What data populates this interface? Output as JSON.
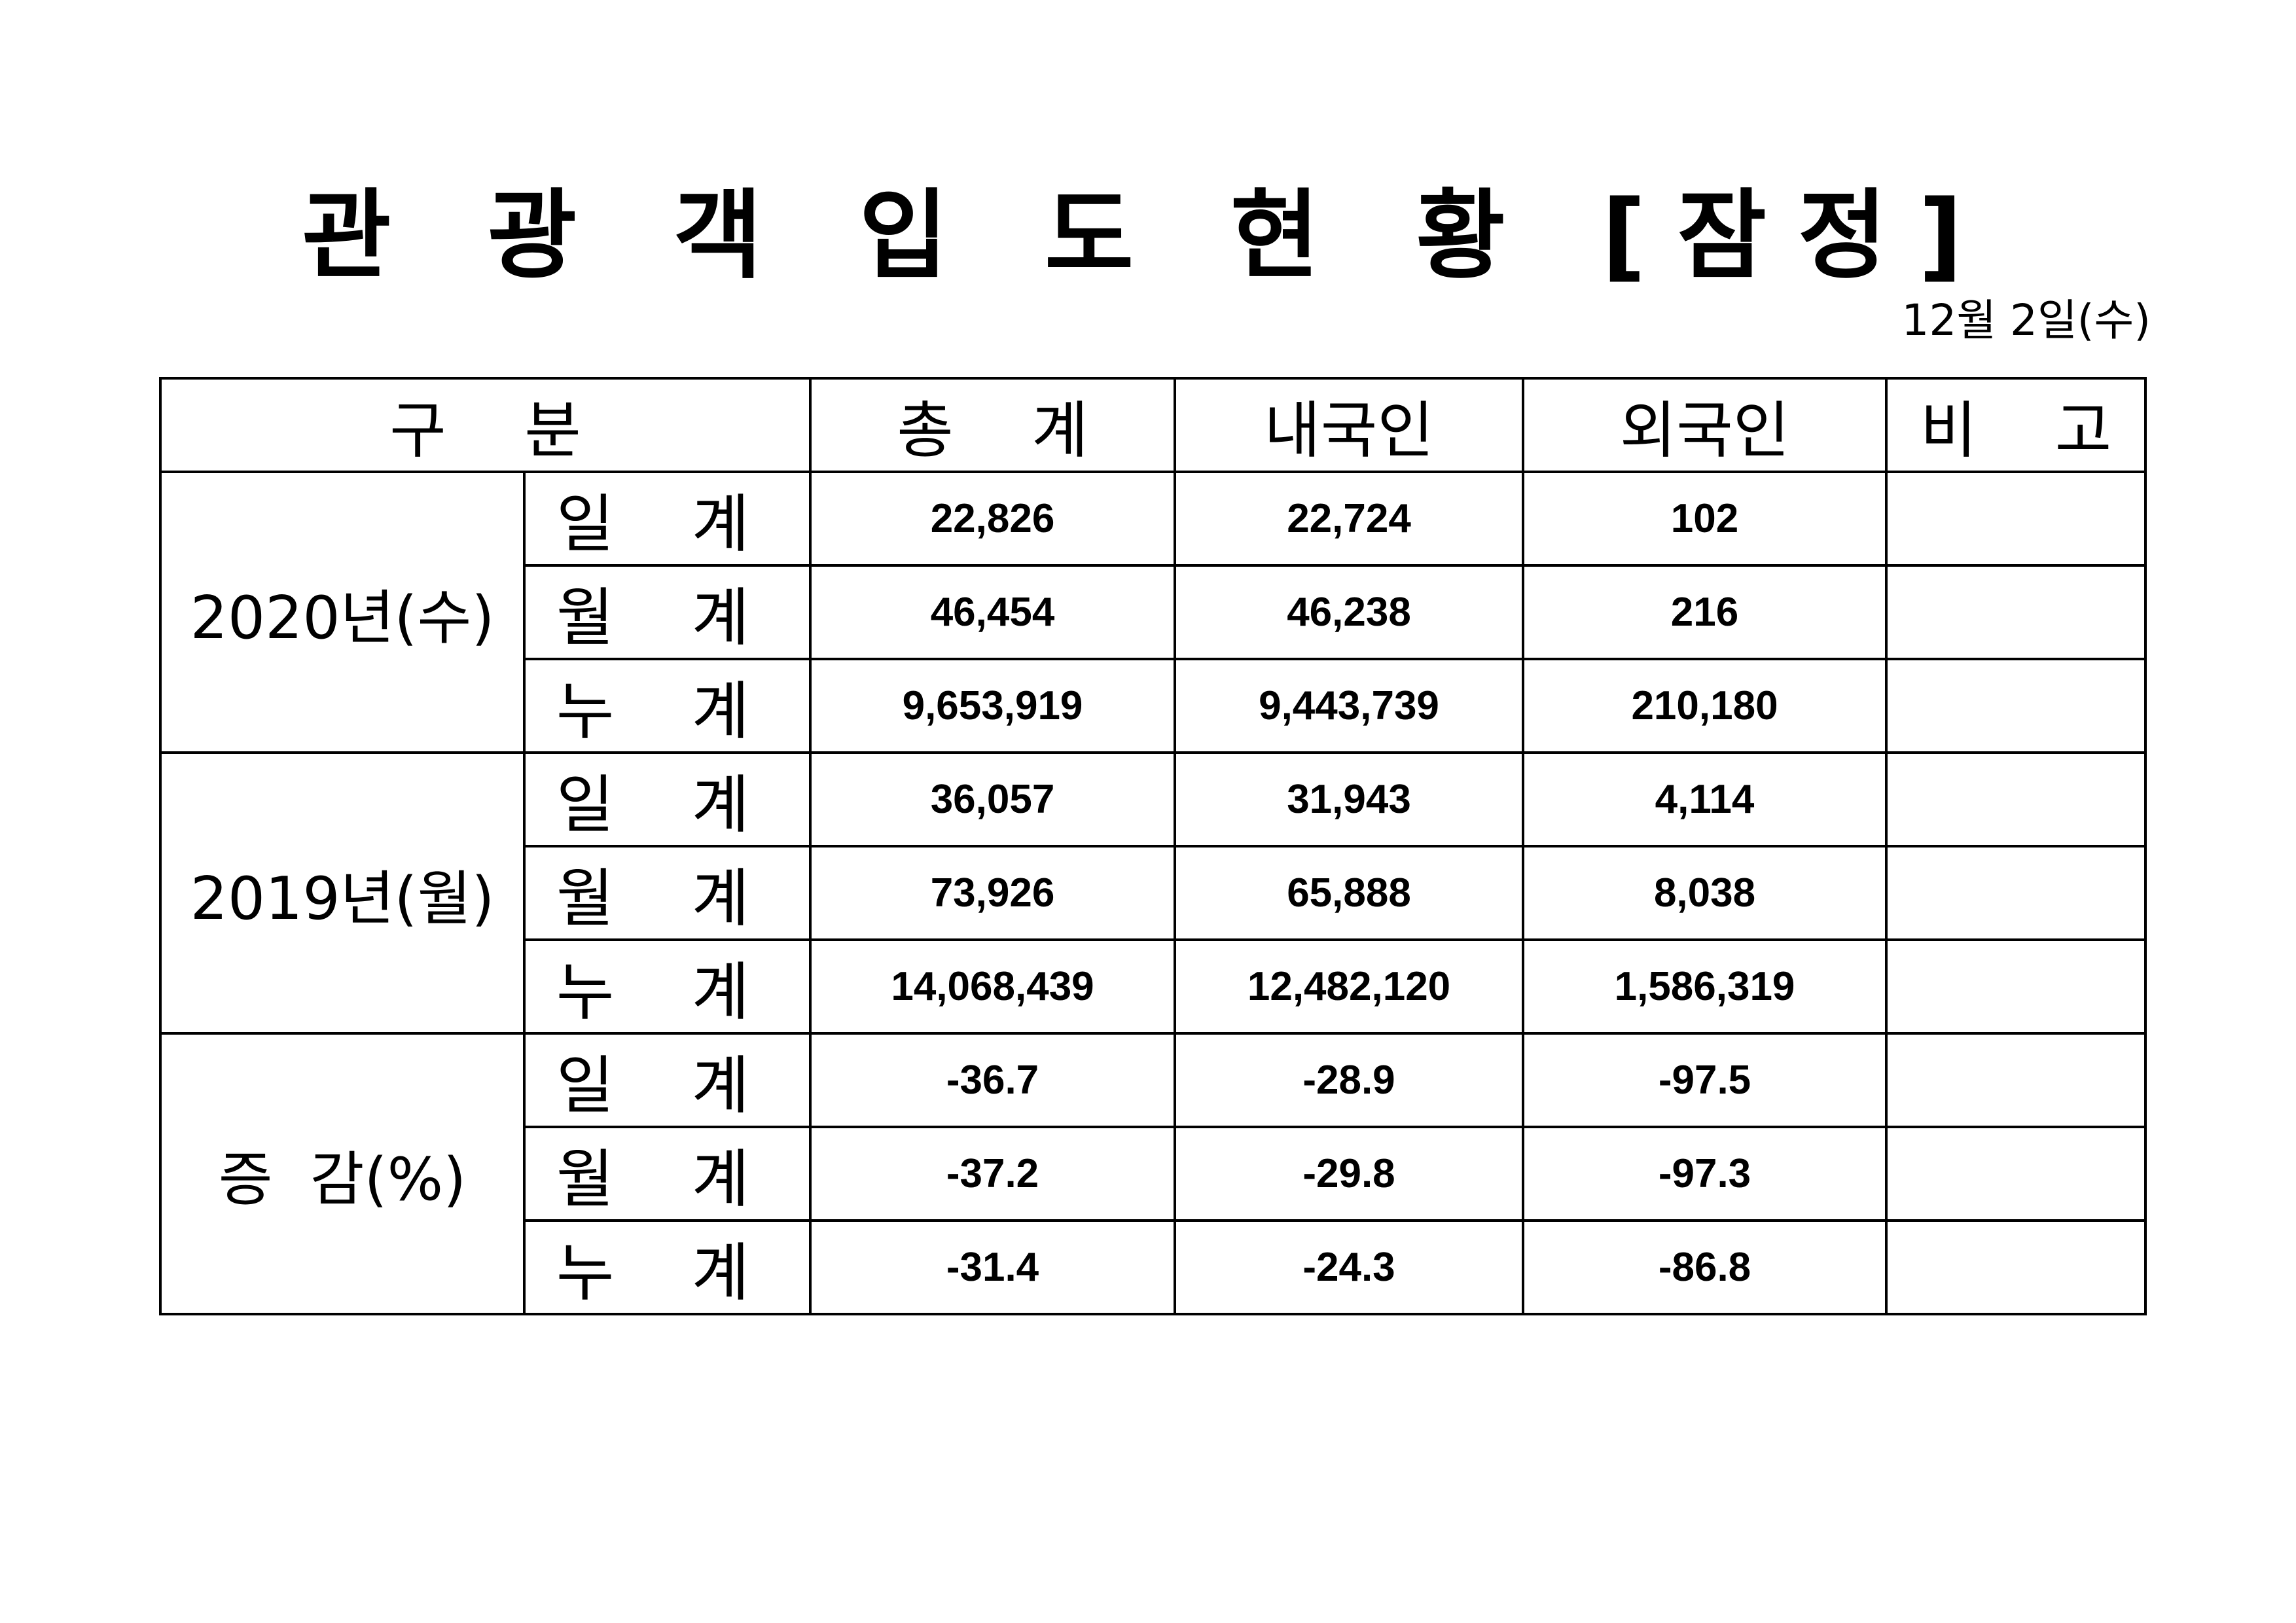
{
  "title": "관 광 객 입 도 현 황 [잠정]",
  "date": "12월  2일(수)",
  "headers": {
    "category": "구    분",
    "total": "총    계",
    "domestic": "내국인",
    "foreign": "외국인",
    "note": "비    고"
  },
  "groups": [
    {
      "label": "2020년(수)",
      "rows": [
        {
          "label": "일 계",
          "total": "22,826",
          "domestic": "22,724",
          "foreign": "102"
        },
        {
          "label": "월 계",
          "total": "46,454",
          "domestic": "46,238",
          "foreign": "216"
        },
        {
          "label": "누 계",
          "total": "9,653,919",
          "domestic": "9,443,739",
          "foreign": "210,180"
        }
      ]
    },
    {
      "label": "2019년(월)",
      "rows": [
        {
          "label": "일 계",
          "total": "36,057",
          "domestic": "31,943",
          "foreign": "4,114"
        },
        {
          "label": "월 계",
          "total": "73,926",
          "domestic": "65,888",
          "foreign": "8,038"
        },
        {
          "label": "누 계",
          "total": "14,068,439",
          "domestic": "12,482,120",
          "foreign": "1,586,319"
        }
      ]
    },
    {
      "label": "증  감(%)",
      "rows": [
        {
          "label": "일 계",
          "total": "-36.7",
          "domestic": "-28.9",
          "foreign": "-97.5"
        },
        {
          "label": "월 계",
          "total": "-37.2",
          "domestic": "-29.8",
          "foreign": "-97.3"
        },
        {
          "label": "누 계",
          "total": "-31.4",
          "domestic": "-24.3",
          "foreign": "-86.8"
        }
      ]
    }
  ]
}
